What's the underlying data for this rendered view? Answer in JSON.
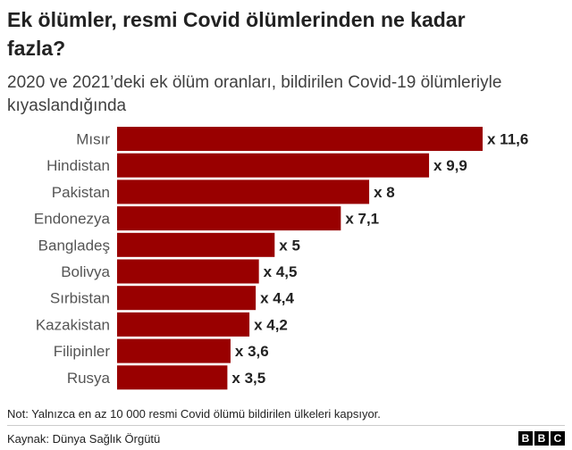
{
  "title": "Ek ölümler, resmi Covid ölümlerinden ne kadar fazla?",
  "subtitle": "2020 ve 2021’deki ek ölüm oranları, bildirilen Covid-19 ölümleriyle kıyaslandığında",
  "note": "Not: Yalnızca en az 10 000 resmi Covid ölümü bildirilen ülkeleri kapsıyor.",
  "source": "Kaynak: Dünya Sağlık Örgütü",
  "logo": [
    "B",
    "B",
    "C"
  ],
  "chart_data": {
    "type": "bar",
    "orientation": "horizontal",
    "categories": [
      "Mısır",
      "Hindistan",
      "Pakistan",
      "Endonezya",
      "Bangladeş",
      "Bolivya",
      "Sırbistan",
      "Kazakistan",
      "Filipinler",
      "Rusya"
    ],
    "values": [
      11.6,
      9.9,
      8,
      7.1,
      5,
      4.5,
      4.4,
      4.2,
      3.6,
      3.5
    ],
    "value_labels": [
      "x 11,6",
      "x 9,9",
      "x 8",
      "x 7,1",
      "x 5",
      "x 4,5",
      "x 4,4",
      "x 4,2",
      "x 3,6",
      "x 3,5"
    ],
    "xlim": [
      0,
      11.6
    ],
    "bar_color": "#990000",
    "grid": false,
    "legend": "none"
  }
}
